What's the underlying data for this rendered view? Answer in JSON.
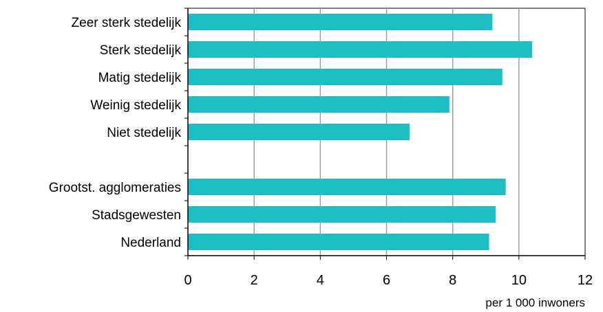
{
  "chart_data": {
    "type": "bar",
    "orientation": "horizontal",
    "categories": [
      "Zeer sterk stedelijk",
      "Sterk stedelijk",
      "Matig stedelijk",
      "Weinig stedelijk",
      "Niet stedelijk",
      "",
      "Grootst. agglomeraties",
      "Stadsgewesten",
      "Nederland"
    ],
    "values": [
      9.2,
      10.4,
      9.5,
      7.9,
      6.7,
      null,
      9.6,
      9.3,
      9.1
    ],
    "xlabel": "per 1 000 inwoners",
    "ylabel": "",
    "xlim": [
      0,
      12
    ],
    "xticks": [
      "0",
      "2",
      "4",
      "6",
      "8",
      "10",
      "12"
    ],
    "grid": true,
    "bar_color": "#1fbec4",
    "grid_color": "#a0a0a0"
  }
}
